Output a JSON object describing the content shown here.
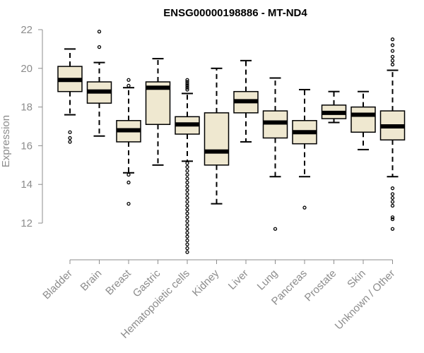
{
  "chart_data": {
    "type": "boxplot",
    "title": "ENSG00000198886 - MT-ND4",
    "ylabel": "Expression",
    "xlabel": "",
    "ylim": [
      10.0,
      22.0
    ],
    "yticks": [
      12,
      14,
      16,
      18,
      20,
      22
    ],
    "grid": false,
    "colors": {
      "box_fill": "#efe8d0",
      "box_stroke": "#000000",
      "median": "#000000",
      "axis": "#8c8c8c",
      "text": "#8c8c8c"
    },
    "categories": [
      "Bladder",
      "Brain",
      "Breast",
      "Gastric",
      "Hematopoietic cells",
      "Kidney",
      "Liver",
      "Lung",
      "Pancreas",
      "Prostate",
      "Skin",
      "Unknown / Other"
    ],
    "boxes": [
      {
        "category": "Bladder",
        "whisker_low": 17.6,
        "q1": 18.8,
        "median": 19.4,
        "q3": 20.1,
        "whisker_high": 21.0,
        "outliers": [
          16.7,
          16.4,
          16.2
        ]
      },
      {
        "category": "Brain",
        "whisker_low": 16.5,
        "q1": 18.2,
        "median": 18.8,
        "q3": 19.3,
        "whisker_high": 20.3,
        "outliers": [
          21.9,
          21.1
        ]
      },
      {
        "category": "Breast",
        "whisker_low": 14.6,
        "q1": 16.2,
        "median": 16.8,
        "q3": 17.3,
        "whisker_high": 19.0,
        "outliers": [
          19.4,
          19.1,
          14.5,
          14.1,
          13.0
        ]
      },
      {
        "category": "Gastric",
        "whisker_low": 15.0,
        "q1": 17.1,
        "median": 19.0,
        "q3": 19.3,
        "whisker_high": 20.5,
        "outliers": []
      },
      {
        "category": "Hematopoietic cells",
        "whisker_low": 15.2,
        "q1": 16.6,
        "median": 17.1,
        "q3": 17.5,
        "whisker_high": 18.7,
        "outliers": [
          19.4,
          19.3,
          19.2,
          19.1,
          19.0,
          18.9,
          15.1,
          14.9,
          14.7,
          14.5,
          14.3,
          14.1,
          13.9,
          13.7,
          13.5,
          13.3,
          13.1,
          12.9,
          12.7,
          12.5,
          12.3,
          12.1,
          11.9,
          11.7,
          11.5,
          11.3,
          11.1,
          10.9,
          10.7,
          10.5
        ]
      },
      {
        "category": "Kidney",
        "whisker_low": 13.0,
        "q1": 15.0,
        "median": 15.7,
        "q3": 17.7,
        "whisker_high": 20.0,
        "outliers": []
      },
      {
        "category": "Liver",
        "whisker_low": 16.2,
        "q1": 17.7,
        "median": 18.3,
        "q3": 18.8,
        "whisker_high": 20.4,
        "outliers": []
      },
      {
        "category": "Lung",
        "whisker_low": 14.4,
        "q1": 16.4,
        "median": 17.2,
        "q3": 17.8,
        "whisker_high": 19.5,
        "outliers": [
          11.7
        ]
      },
      {
        "category": "Pancreas",
        "whisker_low": 14.4,
        "q1": 16.1,
        "median": 16.7,
        "q3": 17.3,
        "whisker_high": 18.9,
        "outliers": [
          12.8
        ]
      },
      {
        "category": "Prostate",
        "whisker_low": 17.2,
        "q1": 17.4,
        "median": 17.7,
        "q3": 18.1,
        "whisker_high": 18.8,
        "outliers": []
      },
      {
        "category": "Skin",
        "whisker_low": 15.8,
        "q1": 16.7,
        "median": 17.6,
        "q3": 18.0,
        "whisker_high": 18.8,
        "outliers": []
      },
      {
        "category": "Unknown / Other",
        "whisker_low": 14.4,
        "q1": 16.3,
        "median": 17.0,
        "q3": 17.8,
        "whisker_high": 19.9,
        "outliers": [
          21.5,
          21.2,
          20.9,
          20.6,
          20.4,
          20.2,
          13.8,
          13.5,
          13.3,
          13.1,
          12.9,
          12.3,
          12.2,
          11.7
        ]
      }
    ]
  }
}
